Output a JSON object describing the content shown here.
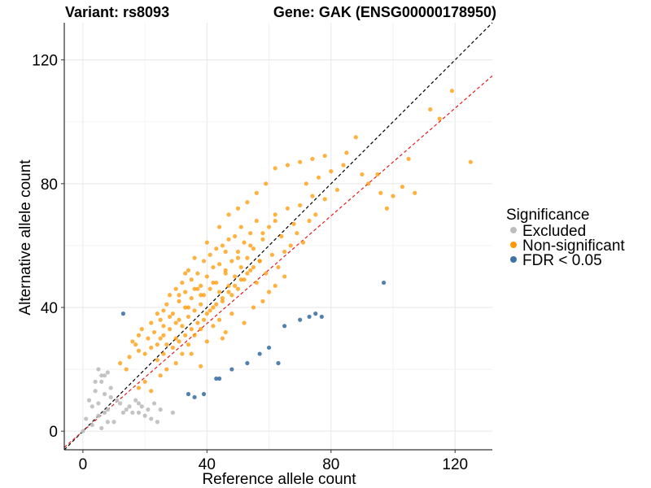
{
  "chart_data": {
    "type": "scatter",
    "title_left": "Variant: rs8093",
    "title_right": "Gene: GAK (ENSG00000178950)",
    "xlabel": "Reference allele count",
    "ylabel": "Alternative allele count",
    "xlim": [
      -6,
      132
    ],
    "ylim": [
      -6,
      132
    ],
    "xticks": [
      0,
      40,
      80,
      120
    ],
    "yticks": [
      0,
      40,
      80,
      120
    ],
    "grid": true,
    "legend_position": "right",
    "legend": {
      "title": "Significance",
      "entries": [
        {
          "name": "Excluded",
          "color": "#bdbdbd"
        },
        {
          "name": "Non-significant",
          "color": "#ff9800"
        },
        {
          "name": "FDR < 0.05",
          "color": "#3f73a7"
        }
      ]
    },
    "reference_lines": [
      {
        "slope": 1.0,
        "intercept": 0,
        "color": "#000000",
        "dash": "dashed"
      },
      {
        "slope": 0.87,
        "intercept": 0,
        "color": "#e41a1c",
        "dash": "dashed"
      }
    ],
    "series": [
      {
        "name": "Excluded",
        "color": "#bdbdbd",
        "points": [
          [
            0,
            0
          ],
          [
            1,
            4
          ],
          [
            2,
            10
          ],
          [
            3,
            8
          ],
          [
            3,
            2
          ],
          [
            4,
            13
          ],
          [
            5,
            9
          ],
          [
            5,
            5
          ],
          [
            6,
            16
          ],
          [
            6,
            1
          ],
          [
            7,
            18
          ],
          [
            7,
            12
          ],
          [
            7,
            6
          ],
          [
            8,
            7
          ],
          [
            8,
            3
          ],
          [
            9,
            14
          ],
          [
            9,
            11
          ],
          [
            10,
            3
          ],
          [
            11,
            10
          ],
          [
            12,
            9
          ],
          [
            13,
            6
          ],
          [
            14,
            7
          ],
          [
            15,
            8
          ],
          [
            16,
            6
          ],
          [
            17,
            10
          ],
          [
            18,
            9
          ],
          [
            18,
            6
          ],
          [
            19,
            8
          ],
          [
            20,
            5
          ],
          [
            21,
            7
          ],
          [
            22,
            4
          ],
          [
            23,
            9
          ],
          [
            24,
            3
          ],
          [
            25,
            7
          ],
          [
            29,
            6
          ],
          [
            5,
            20
          ],
          [
            6,
            18
          ],
          [
            8,
            19
          ],
          [
            4,
            16
          ]
        ]
      },
      {
        "name": "Non-significant",
        "color": "#ff9800",
        "points": [
          [
            12,
            22
          ],
          [
            14,
            20
          ],
          [
            15,
            24
          ],
          [
            16,
            29
          ],
          [
            17,
            28
          ],
          [
            18,
            26
          ],
          [
            18,
            31
          ],
          [
            19,
            33
          ],
          [
            20,
            25
          ],
          [
            21,
            30
          ],
          [
            22,
            35
          ],
          [
            22,
            27
          ],
          [
            23,
            32
          ],
          [
            24,
            38
          ],
          [
            24,
            23
          ],
          [
            25,
            36
          ],
          [
            25,
            30
          ],
          [
            26,
            34
          ],
          [
            26,
            39
          ],
          [
            27,
            41
          ],
          [
            27,
            28
          ],
          [
            28,
            44
          ],
          [
            28,
            33
          ],
          [
            29,
            38
          ],
          [
            30,
            46
          ],
          [
            30,
            30
          ],
          [
            31,
            42
          ],
          [
            31,
            36
          ],
          [
            32,
            48
          ],
          [
            32,
            34
          ],
          [
            33,
            40
          ],
          [
            33,
            45
          ],
          [
            34,
            52
          ],
          [
            34,
            37
          ],
          [
            35,
            43
          ],
          [
            35,
            49
          ],
          [
            36,
            56
          ],
          [
            36,
            39
          ],
          [
            37,
            46
          ],
          [
            37,
            51
          ],
          [
            38,
            41
          ],
          [
            38,
            47
          ],
          [
            39,
            55
          ],
          [
            39,
            44
          ],
          [
            40,
            50
          ],
          [
            40,
            38
          ],
          [
            41,
            57
          ],
          [
            41,
            46
          ],
          [
            42,
            53
          ],
          [
            42,
            40
          ],
          [
            43,
            48
          ],
          [
            43,
            59
          ],
          [
            44,
            45
          ],
          [
            44,
            54
          ],
          [
            45,
            60
          ],
          [
            45,
            42
          ],
          [
            46,
            51
          ],
          [
            46,
            58
          ],
          [
            47,
            47
          ],
          [
            47,
            62
          ],
          [
            48,
            55
          ],
          [
            48,
            44
          ],
          [
            49,
            63
          ],
          [
            49,
            50
          ],
          [
            50,
            58
          ],
          [
            50,
            46
          ],
          [
            51,
            66
          ],
          [
            51,
            53
          ],
          [
            52,
            49
          ],
          [
            52,
            61
          ],
          [
            53,
            56
          ],
          [
            54,
            52
          ],
          [
            54,
            64
          ],
          [
            55,
            59
          ],
          [
            56,
            48
          ],
          [
            56,
            68
          ],
          [
            57,
            55
          ],
          [
            58,
            62
          ],
          [
            59,
            51
          ],
          [
            60,
            66
          ],
          [
            61,
            57
          ],
          [
            62,
            70
          ],
          [
            63,
            53
          ],
          [
            64,
            63
          ],
          [
            65,
            58
          ],
          [
            66,
            72
          ],
          [
            67,
            60
          ],
          [
            68,
            67
          ],
          [
            69,
            64
          ],
          [
            70,
            73
          ],
          [
            71,
            61
          ],
          [
            72,
            80
          ],
          [
            73,
            68
          ],
          [
            74,
            76
          ],
          [
            75,
            70
          ],
          [
            76,
            82
          ],
          [
            78,
            75
          ],
          [
            80,
            84
          ],
          [
            82,
            78
          ],
          [
            85,
            90
          ],
          [
            88,
            95
          ],
          [
            90,
            83
          ],
          [
            95,
            83
          ],
          [
            100,
            76
          ],
          [
            103,
            79
          ],
          [
            105,
            88
          ],
          [
            107,
            77
          ],
          [
            112,
            104
          ],
          [
            115,
            101
          ],
          [
            119,
            110
          ],
          [
            125,
            87
          ],
          [
            30,
            22
          ],
          [
            32,
            25
          ],
          [
            34,
            28
          ],
          [
            36,
            31
          ],
          [
            38,
            33
          ],
          [
            40,
            29
          ],
          [
            42,
            34
          ],
          [
            44,
            36
          ],
          [
            46,
            32
          ],
          [
            48,
            38
          ],
          [
            25,
            18
          ],
          [
            27,
            20
          ],
          [
            20,
            16
          ],
          [
            22,
            13
          ],
          [
            18,
            14
          ],
          [
            35,
            25
          ],
          [
            38,
            21
          ],
          [
            45,
            30
          ],
          [
            55,
            40
          ],
          [
            60,
            45
          ],
          [
            65,
            50
          ],
          [
            52,
            35
          ],
          [
            58,
            42
          ],
          [
            62,
            47
          ],
          [
            28,
            37
          ],
          [
            31,
            44
          ],
          [
            33,
            51
          ],
          [
            36,
            46
          ],
          [
            40,
            61
          ],
          [
            44,
            66
          ],
          [
            47,
            70
          ],
          [
            50,
            72
          ],
          [
            53,
            74
          ],
          [
            56,
            77
          ],
          [
            59,
            80
          ],
          [
            62,
            85
          ],
          [
            66,
            86
          ],
          [
            70,
            87
          ],
          [
            74,
            88
          ],
          [
            78,
            89
          ],
          [
            84,
            86
          ],
          [
            92,
            80
          ],
          [
            96,
            77
          ],
          [
            98,
            72
          ],
          [
            24,
            28
          ],
          [
            26,
            25
          ],
          [
            29,
            27
          ],
          [
            31,
            29
          ],
          [
            33,
            31
          ],
          [
            35,
            33
          ],
          [
            37,
            35
          ],
          [
            39,
            36
          ],
          [
            41,
            39
          ],
          [
            43,
            41
          ],
          [
            45,
            43
          ],
          [
            47,
            45
          ],
          [
            49,
            47
          ],
          [
            51,
            49
          ],
          [
            53,
            51
          ],
          [
            55,
            53
          ],
          [
            57,
            55
          ],
          [
            26,
            31
          ],
          [
            30,
            35
          ],
          [
            34,
            40
          ],
          [
            38,
            44
          ],
          [
            42,
            48
          ],
          [
            46,
            52
          ],
          [
            50,
            56
          ],
          [
            54,
            60
          ],
          [
            58,
            64
          ],
          [
            62,
            68
          ]
        ]
      },
      {
        "name": "FDR < 0.05",
        "color": "#3f73a7",
        "points": [
          [
            13,
            38
          ],
          [
            34,
            12
          ],
          [
            36,
            11
          ],
          [
            39,
            12
          ],
          [
            43,
            17
          ],
          [
            44,
            17
          ],
          [
            48,
            20
          ],
          [
            53,
            22
          ],
          [
            57,
            25
          ],
          [
            60,
            27
          ],
          [
            63,
            22
          ],
          [
            65,
            34
          ],
          [
            70,
            36
          ],
          [
            73,
            37
          ],
          [
            75,
            38
          ],
          [
            77,
            37
          ],
          [
            97,
            48
          ]
        ]
      }
    ]
  }
}
